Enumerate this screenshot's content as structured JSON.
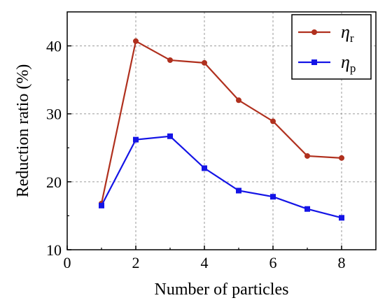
{
  "chart_data": {
    "type": "line",
    "title": "",
    "xlabel": "Number of particles",
    "ylabel": "Reduction ratio (%)",
    "xlim": [
      0,
      9
    ],
    "ylim": [
      10,
      45
    ],
    "x_ticks": [
      0,
      2,
      4,
      6,
      8
    ],
    "y_ticks": [
      10,
      20,
      30,
      40
    ],
    "grid": true,
    "legend_position": "top-right",
    "x": [
      1,
      2,
      3,
      4,
      5,
      6,
      7,
      8
    ],
    "series": [
      {
        "name": "η_r",
        "label_main": "η",
        "label_sub": "r",
        "color": "#b0301e",
        "marker": "circle",
        "values": [
          16.8,
          40.7,
          37.9,
          37.5,
          32.0,
          28.9,
          23.8,
          23.5
        ]
      },
      {
        "name": "η_p",
        "label_main": "η",
        "label_sub": "p",
        "color": "#1414e6",
        "marker": "square",
        "values": [
          16.5,
          26.2,
          26.7,
          22.0,
          18.7,
          17.8,
          16.0,
          14.7
        ]
      }
    ]
  }
}
